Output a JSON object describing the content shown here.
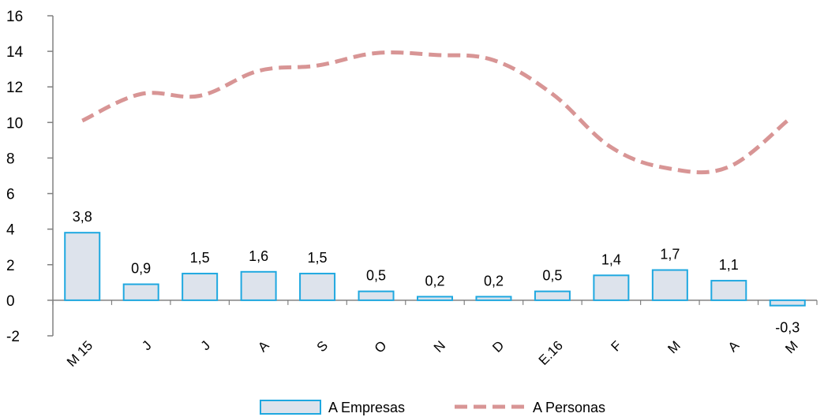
{
  "chart_data": {
    "type": "bar",
    "categories": [
      "M 15",
      "J",
      "J",
      "A",
      "S",
      "O",
      "N",
      "D",
      "E.16",
      "F",
      "M",
      "A",
      "M"
    ],
    "series": [
      {
        "name": "A Empresas",
        "type": "bar",
        "values": [
          3.8,
          0.9,
          1.5,
          1.6,
          1.5,
          0.5,
          0.2,
          0.2,
          0.5,
          1.4,
          1.7,
          1.1,
          -0.3
        ],
        "labels": [
          "3,8",
          "0,9",
          "1,5",
          "1,6",
          "1,5",
          "0,5",
          "0,2",
          "0,2",
          "0,5",
          "1,4",
          "1,7",
          "1,1",
          "-0,3"
        ],
        "color": "#dde3ec",
        "border_color": "#1fa8e0"
      },
      {
        "name": "A Personas",
        "type": "line",
        "style": "dashed",
        "values": [
          10.1,
          11.6,
          11.5,
          12.9,
          13.2,
          13.9,
          13.8,
          13.5,
          11.6,
          8.6,
          7.4,
          7.5,
          10.1
        ],
        "color": "#d89595"
      }
    ],
    "ylim": [
      -2,
      16
    ],
    "yticks": [
      -2,
      0,
      2,
      4,
      6,
      8,
      10,
      12,
      14,
      16
    ],
    "grid": false,
    "legend": "bottom"
  }
}
